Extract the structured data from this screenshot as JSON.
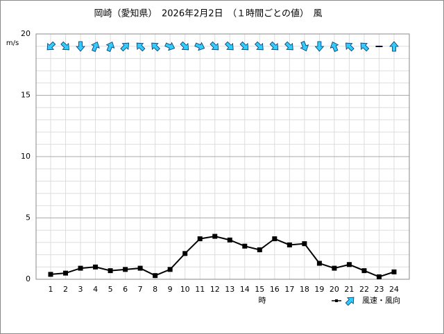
{
  "chart_data": {
    "type": "line",
    "title": "岡崎（愛知県）　2026年2月2日　（１時間ごとの値）　風",
    "y_label": "m/s",
    "x_label": "時",
    "categories": [
      "1",
      "2",
      "3",
      "4",
      "5",
      "6",
      "7",
      "8",
      "9",
      "10",
      "11",
      "12",
      "13",
      "14",
      "15",
      "16",
      "17",
      "18",
      "19",
      "20",
      "21",
      "22",
      "23",
      "24"
    ],
    "series": [
      {
        "name": "風速・風向",
        "color": "#000000",
        "values": [
          0.4,
          0.5,
          0.9,
          1.0,
          0.7,
          0.8,
          0.9,
          0.3,
          0.8,
          2.1,
          3.3,
          3.5,
          3.2,
          2.7,
          2.4,
          3.3,
          2.8,
          2.9,
          1.3,
          0.9,
          1.2,
          0.7,
          0.2,
          0.6
        ],
        "arrow_angle": [
          225,
          135,
          180,
          22.5,
          22.5,
          45,
          315,
          315,
          112.5,
          135,
          112.5,
          135,
          135,
          135,
          135,
          135,
          135,
          157.5,
          180,
          337.5,
          315,
          315,
          null,
          0
        ],
        "arrow_color": "#33ccff"
      }
    ],
    "ylim": [
      0,
      20
    ],
    "yticks": [
      0,
      5,
      10,
      15,
      20
    ],
    "minor_grid_step": 1,
    "grid": true
  }
}
